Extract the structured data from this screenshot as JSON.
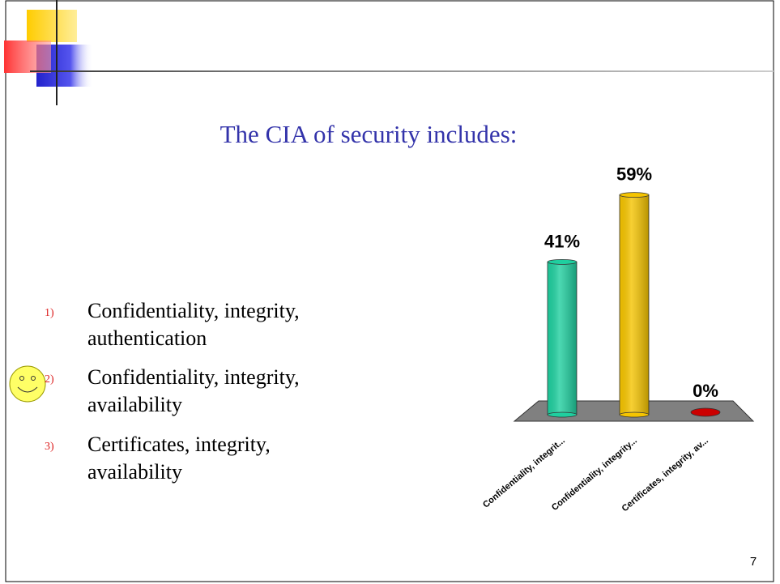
{
  "title": "The CIA of security includes:",
  "options": [
    {
      "number": "1)",
      "lines": [
        "Confidentiality, integrity,",
        "authentication"
      ]
    },
    {
      "number": "2)",
      "lines": [
        "Confidentiality, integrity,",
        "availability"
      ]
    },
    {
      "number": "3)",
      "lines": [
        "Certificates, integrity,",
        "availability"
      ]
    }
  ],
  "page_number": "7",
  "chart_data": {
    "type": "bar",
    "categories": [
      "Confidentiality, integrit...",
      "Confidentiality, integrity...",
      "Certificates, integrity, av..."
    ],
    "values": [
      41,
      59,
      0
    ],
    "value_labels": [
      "41%",
      "59%",
      "0%"
    ],
    "colors": [
      "#1fcf9f",
      "#f5c400",
      "#cc0000"
    ]
  }
}
